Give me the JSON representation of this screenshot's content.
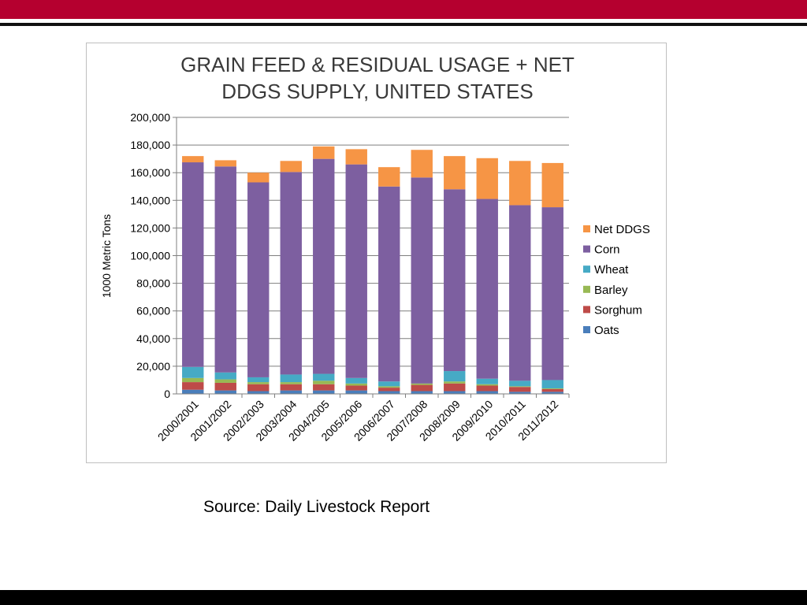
{
  "slide": {
    "source_text": "Source: Daily Livestock Report",
    "colors": {
      "top_bar": "#b5002f",
      "bottom_bar": "#000000"
    }
  },
  "chart_data": {
    "type": "bar",
    "stacked": true,
    "title_line1": "GRAIN FEED & RESIDUAL USAGE + NET",
    "title_line2": "DDGS SUPPLY, UNITED STATES",
    "xlabel": "",
    "ylabel": "1000 Metric Tons",
    "ylim": [
      0,
      200000
    ],
    "yticks": [
      0,
      20000,
      40000,
      60000,
      80000,
      100000,
      120000,
      140000,
      160000,
      180000,
      200000
    ],
    "ytick_labels": [
      "0",
      "20,000",
      "40,000",
      "60,000",
      "80,000",
      "100,000",
      "120,000",
      "140,000",
      "160,000",
      "180,000",
      "200,000"
    ],
    "grid": true,
    "legend_position": "right",
    "categories": [
      "2000/2001",
      "2001/2002",
      "2002/2003",
      "2003/2004",
      "2004/2005",
      "2005/2006",
      "2006/2007",
      "2007/2008",
      "2008/2009",
      "2009/2010",
      "2010/2011",
      "2011/2012"
    ],
    "series": [
      {
        "name": "Oats",
        "color": "#4a7ebb",
        "values": [
          3000,
          2500,
          2000,
          2500,
          2500,
          2500,
          2000,
          2000,
          2000,
          2000,
          1500,
          1500
        ]
      },
      {
        "name": "Sorghum",
        "color": "#be4b48",
        "values": [
          5500,
          5500,
          5000,
          4500,
          4500,
          3500,
          2500,
          4500,
          5500,
          4000,
          3500,
          2000
        ]
      },
      {
        "name": "Barley",
        "color": "#98b954",
        "values": [
          3000,
          2500,
          1500,
          1500,
          2500,
          1500,
          1000,
          1000,
          1500,
          1000,
          500,
          500
        ]
      },
      {
        "name": "Wheat",
        "color": "#46aac5",
        "values": [
          8000,
          5000,
          3500,
          5500,
          5000,
          4000,
          3500,
          0,
          7500,
          4000,
          4000,
          6000
        ]
      },
      {
        "name": "Corn",
        "color": "#7d5fa0",
        "values": [
          148000,
          149000,
          141000,
          146500,
          155500,
          154500,
          141000,
          149000,
          131500,
          130000,
          127000,
          125000
        ]
      },
      {
        "name": "Net DDGS",
        "color": "#f69545",
        "values": [
          4500,
          4500,
          7000,
          8000,
          9000,
          11000,
          14000,
          20000,
          24000,
          29500,
          32000,
          32000
        ]
      }
    ]
  }
}
